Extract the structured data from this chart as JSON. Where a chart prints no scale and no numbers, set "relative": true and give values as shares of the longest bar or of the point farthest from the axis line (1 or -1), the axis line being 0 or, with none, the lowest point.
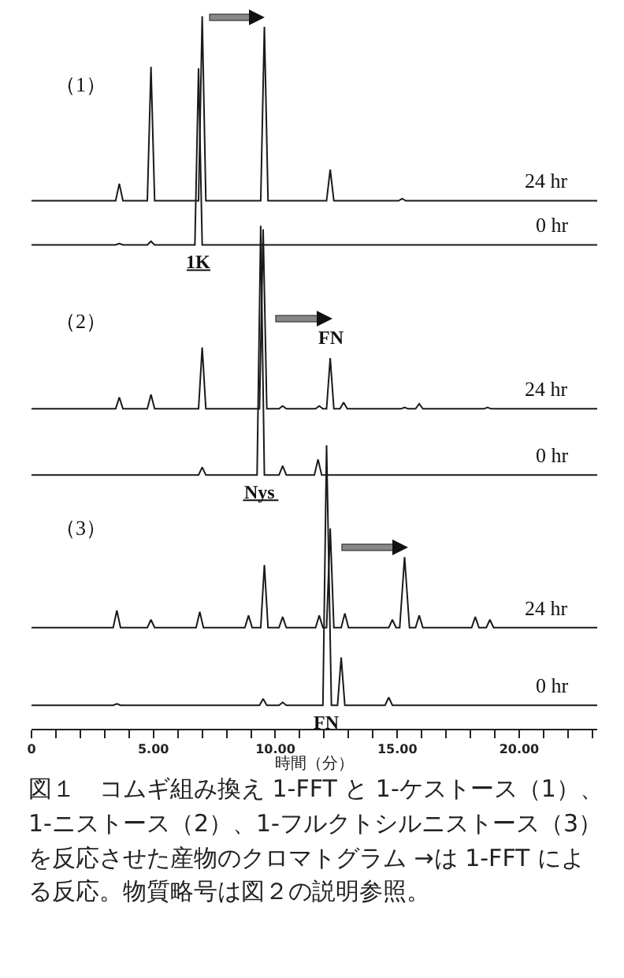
{
  "chart_data": {
    "type": "line",
    "relative": true,
    "xlabel": "時間（分）",
    "xlim": [
      0,
      23.2
    ],
    "xticks": [
      {
        "value": 0,
        "label": "0"
      },
      {
        "value": 1,
        "label": null
      },
      {
        "value": 2,
        "label": null
      },
      {
        "value": 3,
        "label": null
      },
      {
        "value": 4,
        "label": null
      },
      {
        "value": 5,
        "label": "5.00"
      },
      {
        "value": 6,
        "label": null
      },
      {
        "value": 7,
        "label": null
      },
      {
        "value": 8,
        "label": null
      },
      {
        "value": 9,
        "label": null
      },
      {
        "value": 10,
        "label": "10.00"
      },
      {
        "value": 11,
        "label": null
      },
      {
        "value": 12,
        "label": null
      },
      {
        "value": 13,
        "label": null
      },
      {
        "value": 14,
        "label": null
      },
      {
        "value": 15,
        "label": "15.00"
      },
      {
        "value": 16,
        "label": null
      },
      {
        "value": 17,
        "label": null
      },
      {
        "value": 18,
        "label": null
      },
      {
        "value": 19,
        "label": null
      },
      {
        "value": 20,
        "label": "20.00"
      },
      {
        "value": 21,
        "label": null
      },
      {
        "value": 22,
        "label": null
      },
      {
        "value": 23,
        "label": null
      }
    ],
    "series": [
      {
        "name": "24 hr",
        "color": "#1a1a1a",
        "x": [
          0,
          3.45,
          3.6,
          3.75,
          4.75,
          4.9,
          5.05,
          6.85,
          7.0,
          7.15,
          9.4,
          9.55,
          9.7,
          12.1,
          12.25,
          12.4,
          15.05,
          15.2,
          15.35,
          23.2
        ],
        "values": [
          0.741,
          0.741,
          0.765,
          0.741,
          0.741,
          0.929,
          0.741,
          0.741,
          1,
          0.741,
          0.741,
          0.985,
          0.741,
          0.741,
          0.785,
          0.741,
          0.741,
          0.744,
          0.741,
          0.741
        ]
      },
      {
        "name": "0 hr",
        "color": "#1a1a1a",
        "x": [
          0,
          3.45,
          3.6,
          3.75,
          4.75,
          4.9,
          5.05,
          6.7,
          6.85,
          7.0,
          23.2
        ],
        "values": [
          0.679,
          0.679,
          0.681,
          0.679,
          0.679,
          0.684,
          0.679,
          0.679,
          0.927,
          0.679,
          0.679
        ]
      },
      {
        "name": "24 hr",
        "color": "#1a1a1a",
        "x": [
          0,
          3.45,
          3.6,
          3.75,
          4.75,
          4.9,
          5.05,
          6.85,
          7.0,
          7.15,
          9.35,
          9.5,
          9.65,
          10.15,
          10.3,
          10.45,
          11.65,
          11.8,
          11.95,
          12.1,
          12.25,
          12.4,
          12.65,
          12.8,
          12.95,
          15.15,
          15.3,
          15.45,
          15.75,
          15.9,
          16.05,
          18.55,
          18.7,
          18.85,
          23.2
        ],
        "values": [
          0.449,
          0.449,
          0.465,
          0.449,
          0.449,
          0.469,
          0.449,
          0.449,
          0.535,
          0.449,
          0.449,
          0.701,
          0.449,
          0.449,
          0.453,
          0.449,
          0.449,
          0.453,
          0.449,
          0.449,
          0.52,
          0.449,
          0.449,
          0.458,
          0.449,
          0.449,
          0.451,
          0.449,
          0.449,
          0.456,
          0.449,
          0.449,
          0.451,
          0.449,
          0.449
        ]
      },
      {
        "name": "0 hr",
        "color": "#1a1a1a",
        "x": [
          0,
          6.85,
          7.0,
          7.15,
          9.25,
          9.4,
          9.55,
          10.15,
          10.3,
          10.45,
          11.6,
          11.75,
          11.9,
          23.2
        ],
        "values": [
          0.356,
          0.356,
          0.367,
          0.356,
          0.356,
          0.706,
          0.356,
          0.356,
          0.369,
          0.356,
          0.356,
          0.378,
          0.356,
          0.356
        ]
      },
      {
        "name": "24 hr",
        "color": "#1a1a1a",
        "x": [
          0,
          3.35,
          3.5,
          3.65,
          4.75,
          4.9,
          5.05,
          6.75,
          6.9,
          7.05,
          8.75,
          8.9,
          9.05,
          9.4,
          9.55,
          9.7,
          10.15,
          10.3,
          10.45,
          11.65,
          11.8,
          11.95,
          12.1,
          12.25,
          12.4,
          12.7,
          12.85,
          13.0,
          14.65,
          14.8,
          14.95,
          15.1,
          15.3,
          15.5,
          15.75,
          15.9,
          16.05,
          18.05,
          18.2,
          18.35,
          18.65,
          18.8,
          18.95,
          23.2
        ],
        "values": [
          0.142,
          0.142,
          0.166,
          0.142,
          0.142,
          0.153,
          0.142,
          0.142,
          0.164,
          0.142,
          0.142,
          0.159,
          0.142,
          0.142,
          0.23,
          0.142,
          0.142,
          0.157,
          0.142,
          0.142,
          0.159,
          0.142,
          0.142,
          0.281,
          0.142,
          0.142,
          0.162,
          0.142,
          0.142,
          0.153,
          0.142,
          0.142,
          0.241,
          0.142,
          0.142,
          0.159,
          0.142,
          0.142,
          0.157,
          0.142,
          0.142,
          0.153,
          0.142,
          0.142
        ]
      },
      {
        "name": "0 hr",
        "color": "#1a1a1a",
        "x": [
          0,
          3.35,
          3.5,
          3.65,
          9.35,
          9.5,
          9.65,
          10.15,
          10.3,
          10.45,
          11.95,
          12.1,
          12.3,
          12.55,
          12.7,
          12.85,
          14.5,
          14.65,
          14.8,
          23.2
        ],
        "values": [
          0.033,
          0.033,
          0.035,
          0.033,
          0.033,
          0.042,
          0.033,
          0.033,
          0.037,
          0.033,
          0.033,
          0.398,
          0.033,
          0.033,
          0.1,
          0.033,
          0.033,
          0.044,
          0.033,
          0.033
        ]
      }
    ],
    "annotations": [
      "（1）",
      "（2）",
      "（3）",
      {
        "text": "1K",
        "x": 6.85,
        "y": 0.679
      },
      {
        "text": "FN",
        "x": 12.25,
        "y": 0.52
      },
      {
        "text": "Nys",
        "x": 9.4,
        "y": 0.356
      },
      {
        "text": "FN",
        "x": 12.1,
        "y": 0.033
      },
      "図１　コムギ組み換え 1-FFT と 1-ケストース（1）、1-ニストース（2）、1-フルクトシルニストース（3）を反応させた産物のクロマトグラム →は 1-FFT による反応。物質略号は図２の説明参照。"
    ]
  }
}
